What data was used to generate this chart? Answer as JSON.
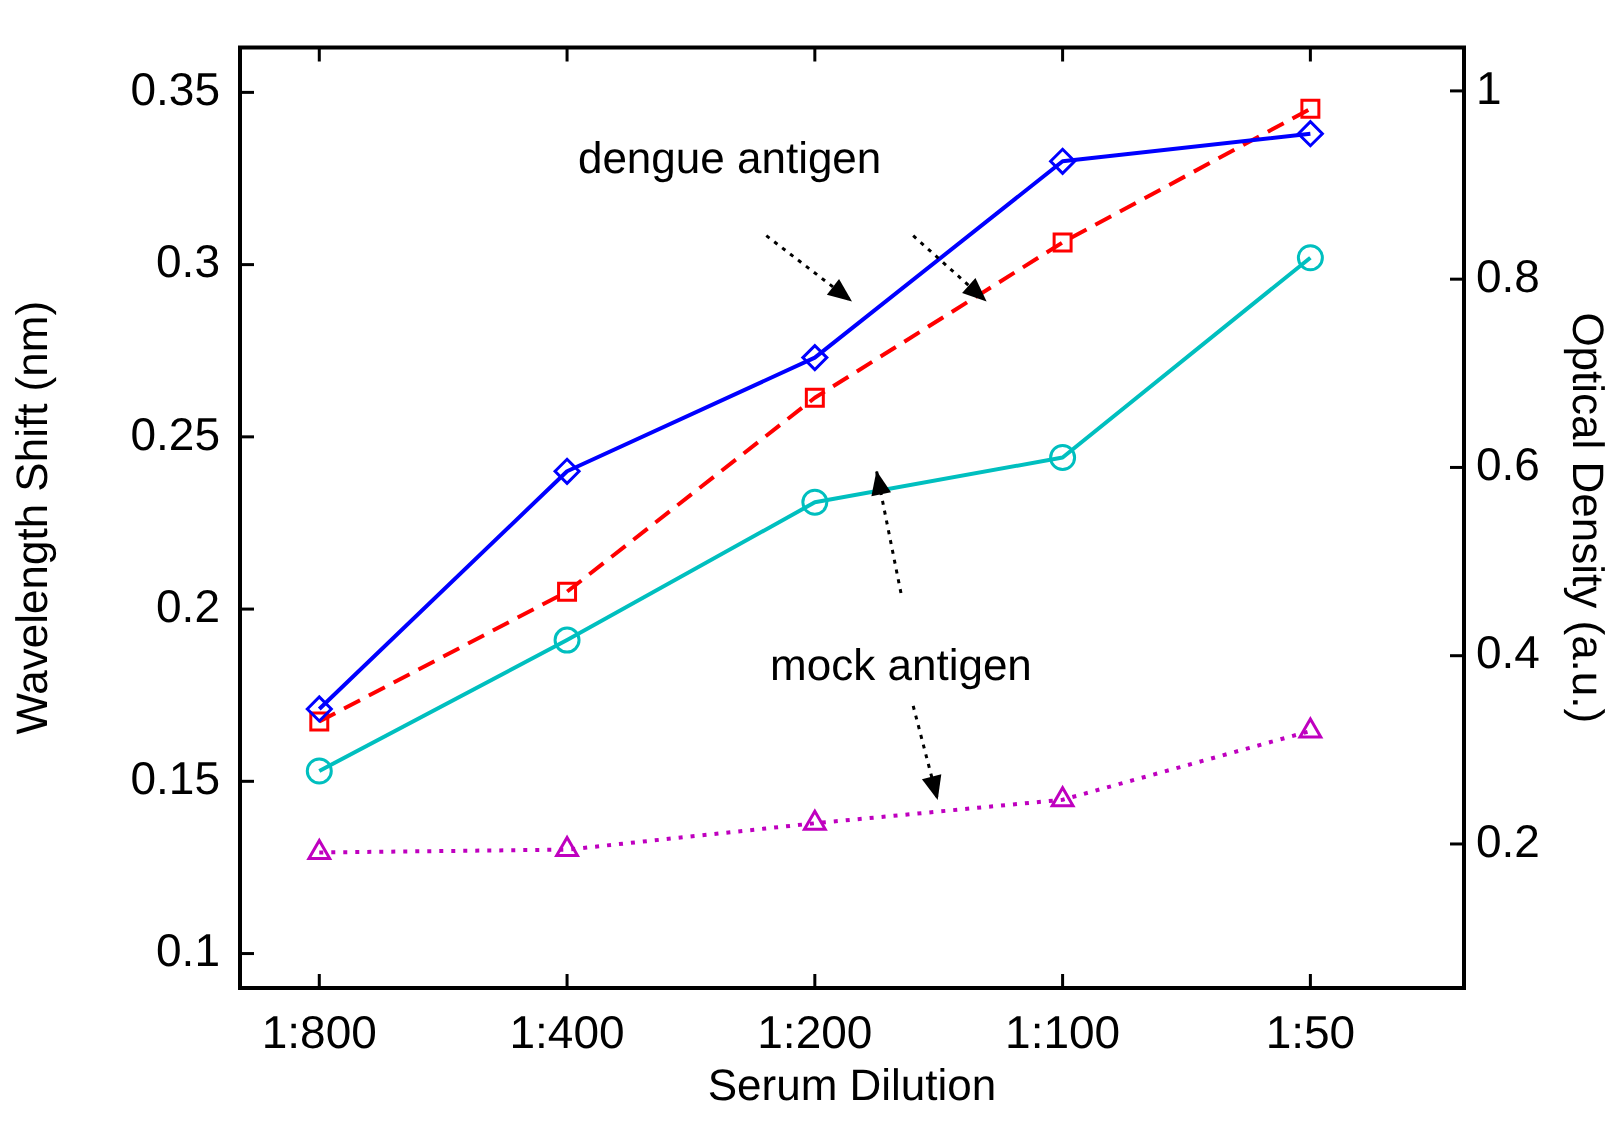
{
  "chart_data": {
    "type": "line",
    "xlabel": "Serum Dilution",
    "ylabel": "Wavelength Shift (nm)",
    "y2label": "Optical Density (a.u.)",
    "categories": [
      "1:800",
      "1:400",
      "1:200",
      "1:100",
      "1:50"
    ],
    "series": [
      {
        "color": "#0000ff",
        "values": [
          0.171,
          0.24,
          0.273,
          0.33,
          0.338
        ],
        "marker": "diamond",
        "line_style": "solid"
      },
      {
        "color": "#ff0000",
        "values": [
          0.33,
          0.468,
          0.674,
          0.839,
          0.981
        ],
        "axis": "y2",
        "marker": "square",
        "line_style": "dashed"
      },
      {
        "color": "#00bfbf",
        "values": [
          0.153,
          0.191,
          0.231,
          0.244,
          0.302
        ],
        "marker": "circle",
        "line_style": "solid"
      },
      {
        "color": "#bf00bf",
        "values": [
          0.191,
          0.194,
          0.222,
          0.247,
          0.32
        ],
        "axis": "y2",
        "marker": "triangle",
        "line_style": "dotted"
      }
    ],
    "ylim": [
      0.09,
      0.363
    ],
    "yticks": [
      0.1,
      0.15,
      0.2,
      0.25,
      0.3,
      0.35
    ],
    "y2lim": [
      0.047,
      1.046
    ],
    "y2ticks": [
      0.2,
      0.4,
      0.6,
      0.8,
      1
    ],
    "annotations": [
      "dengue antigen",
      "mock antigen"
    ],
    "grid": false,
    "legend": false
  }
}
